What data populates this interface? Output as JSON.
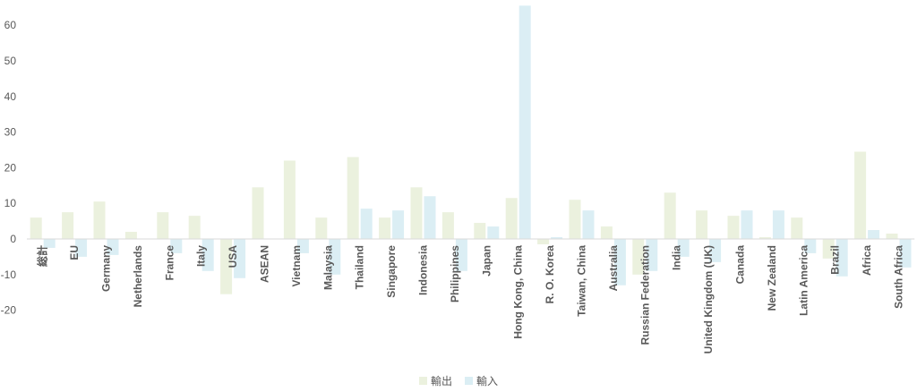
{
  "chart_data": {
    "type": "bar",
    "categories": [
      "総計",
      "EU",
      "Germany",
      "Netherlands",
      "France",
      "Italy",
      "USA",
      "ASEAN",
      "Vietnam",
      "Malaysia",
      "Thailand",
      "Singapore",
      "Indonesia",
      "Philippines",
      "Japan",
      "Hong Kong, China",
      "R. O. Korea",
      "Taiwan, China",
      "Australia",
      "Russian Federation",
      "India",
      "United Kingdom (UK)",
      "Canada",
      "New Zealand",
      "Latin America",
      "Brazil",
      "Africa",
      "South Africa"
    ],
    "series": [
      {
        "name": "輸出",
        "color": "#ebf1de",
        "values": [
          6,
          7.5,
          10.5,
          2,
          7.5,
          6.5,
          -15.5,
          14.5,
          22,
          6,
          23,
          6,
          14.5,
          7.5,
          4.5,
          11.5,
          -1.5,
          11,
          3.5,
          -10,
          13,
          8,
          6.5,
          0.5,
          6,
          -5.5,
          24.5,
          1.5
        ]
      },
      {
        "name": "輸入",
        "color": "#dbeef4",
        "values": [
          -2.5,
          -5,
          -4.5,
          0,
          -4,
          -9,
          -11,
          0,
          -4,
          -10,
          8.5,
          8,
          12,
          -9,
          3.5,
          65.5,
          0.5,
          8,
          -13,
          -9,
          -5,
          -6.5,
          8,
          8,
          -4,
          -10.5,
          2.5,
          -8
        ]
      }
    ],
    "ylim": [
      -20,
      65
    ],
    "yticks": [
      -20,
      -10,
      0,
      10,
      20,
      30,
      40,
      50,
      60
    ],
    "grid": false,
    "legend": "bottom-center"
  }
}
